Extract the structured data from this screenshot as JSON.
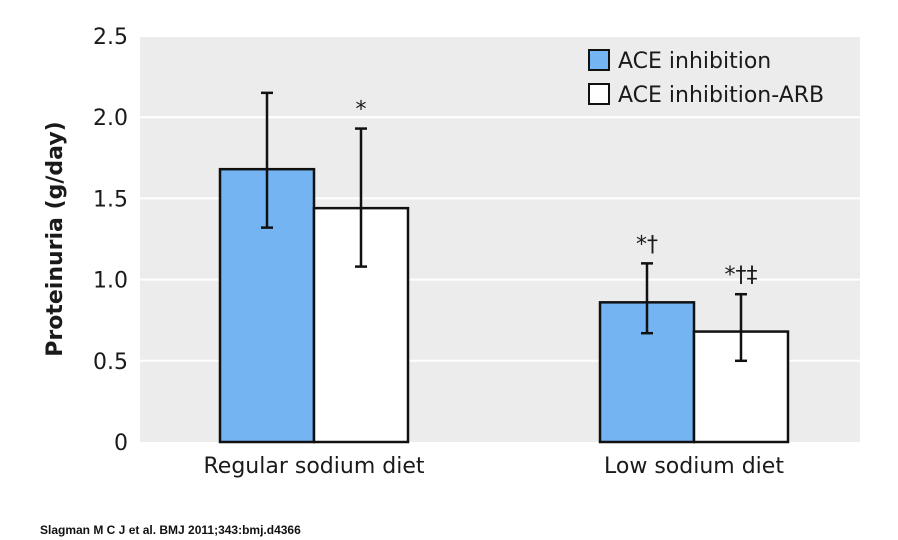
{
  "citation": "Slagman M C J et al. BMJ 2011;343:bmj.d4366",
  "colors": {
    "plot_bg": "#ececed",
    "grid": "#ffffff",
    "series_1": "#74b4f2",
    "series_2": "#ffffff",
    "stroke": "#111111"
  },
  "chart_data": {
    "type": "bar",
    "title": "",
    "xlabel": "",
    "ylabel": "Proteinuria (g/day)",
    "ylim": [
      0,
      2.5
    ],
    "yticks": [
      "0",
      "0.5",
      "1.0",
      "1.5",
      "2.0",
      "2.5"
    ],
    "grid": true,
    "legend": "top-right",
    "categories": [
      "Regular sodium diet",
      "Low sodium diet"
    ],
    "series": [
      {
        "name": "ACE inhibition",
        "values": [
          1.68,
          0.86
        ],
        "error_low": [
          1.32,
          0.67
        ],
        "error_high": [
          2.15,
          1.1
        ],
        "annotations": [
          "",
          "*†"
        ]
      },
      {
        "name": "ACE inhibition-ARB",
        "values": [
          1.44,
          0.68
        ],
        "error_low": [
          1.08,
          0.5
        ],
        "error_high": [
          1.93,
          0.91
        ],
        "annotations": [
          "*",
          "*†‡"
        ]
      }
    ]
  }
}
